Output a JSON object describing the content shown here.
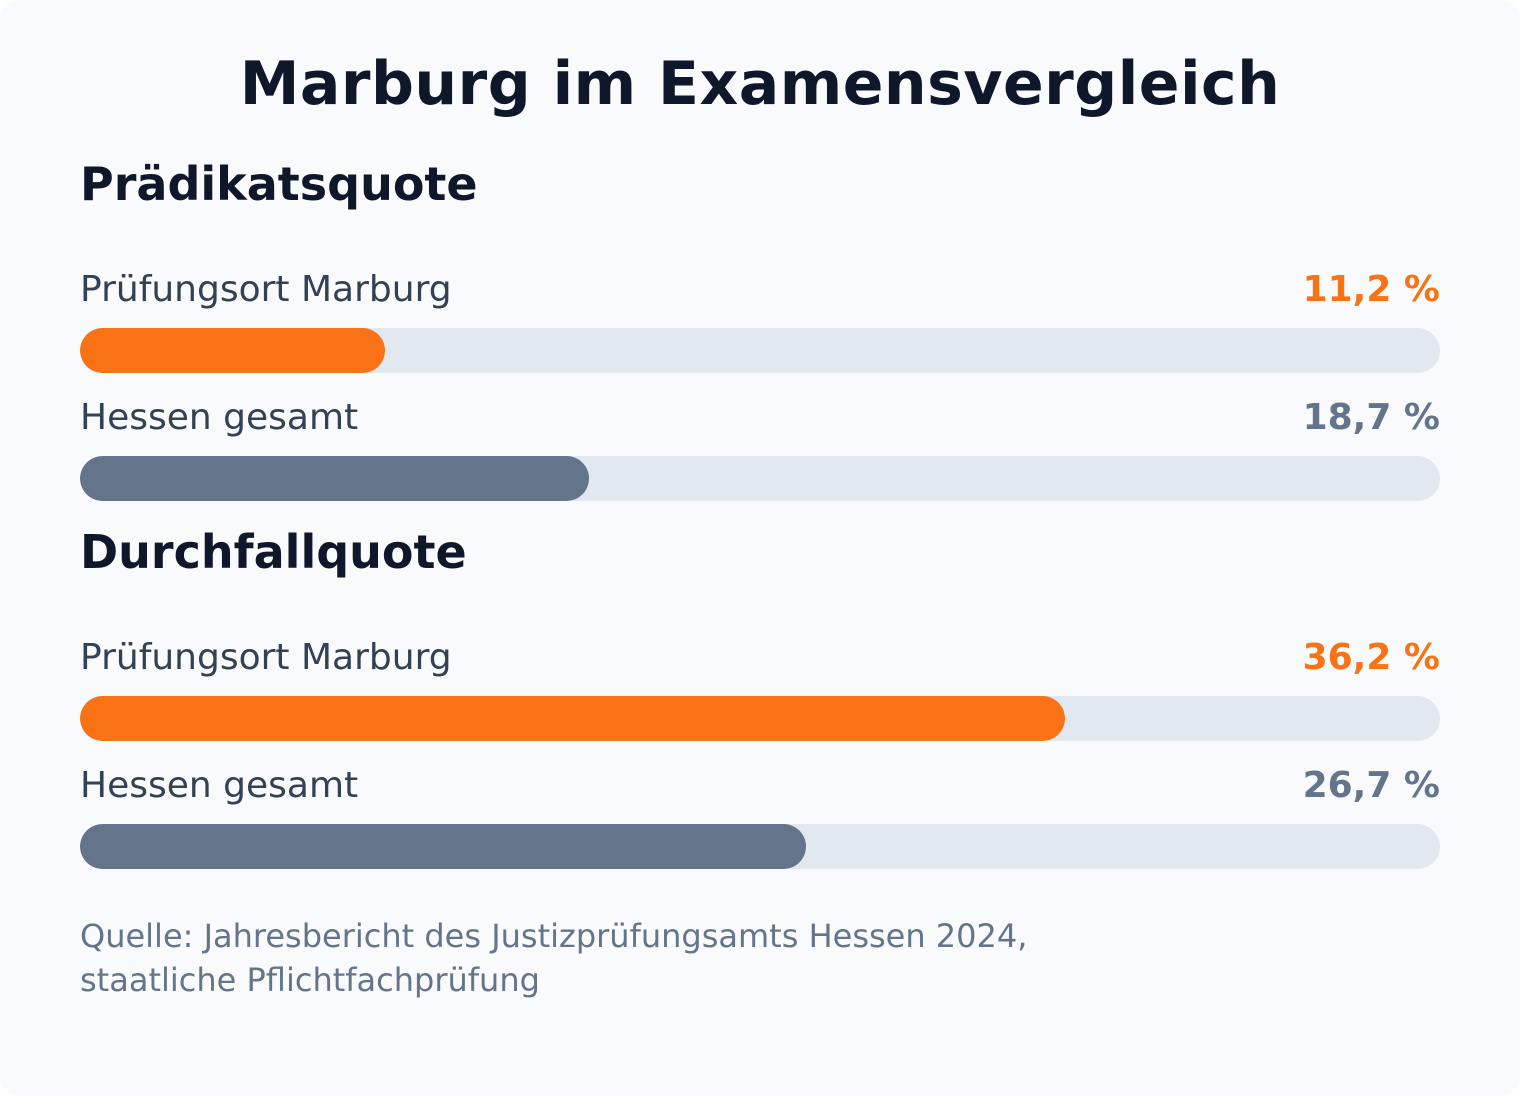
{
  "title": "Marburg im Examensvergleich",
  "colors": {
    "accent": "#f97316",
    "neutral": "#64748b",
    "track": "#e2e8f0",
    "background": "#f8fafc",
    "heading": "#0f172a"
  },
  "chart_data": [
    {
      "type": "bar",
      "title": "Prädikatsquote",
      "xlim": [
        0,
        50
      ],
      "series": [
        {
          "label": "Prüfungsort Marburg",
          "value": 11.2,
          "value_text": "11,2 %",
          "color": "#f97316"
        },
        {
          "label": "Hessen gesamt",
          "value": 18.7,
          "value_text": "18,7 %",
          "color": "#64748b"
        }
      ]
    },
    {
      "type": "bar",
      "title": "Durchfallquote",
      "xlim": [
        0,
        50
      ],
      "series": [
        {
          "label": "Prüfungsort Marburg",
          "value": 36.2,
          "value_text": "36,2 %",
          "color": "#f97316"
        },
        {
          "label": "Hessen gesamt",
          "value": 26.7,
          "value_text": "26,7 %",
          "color": "#64748b"
        }
      ]
    }
  ],
  "source_line1": "Quelle: Jahresbericht des Justizprüfungsamts Hessen 2024,",
  "source_line2": "staatliche Pflichtfachprüfung"
}
